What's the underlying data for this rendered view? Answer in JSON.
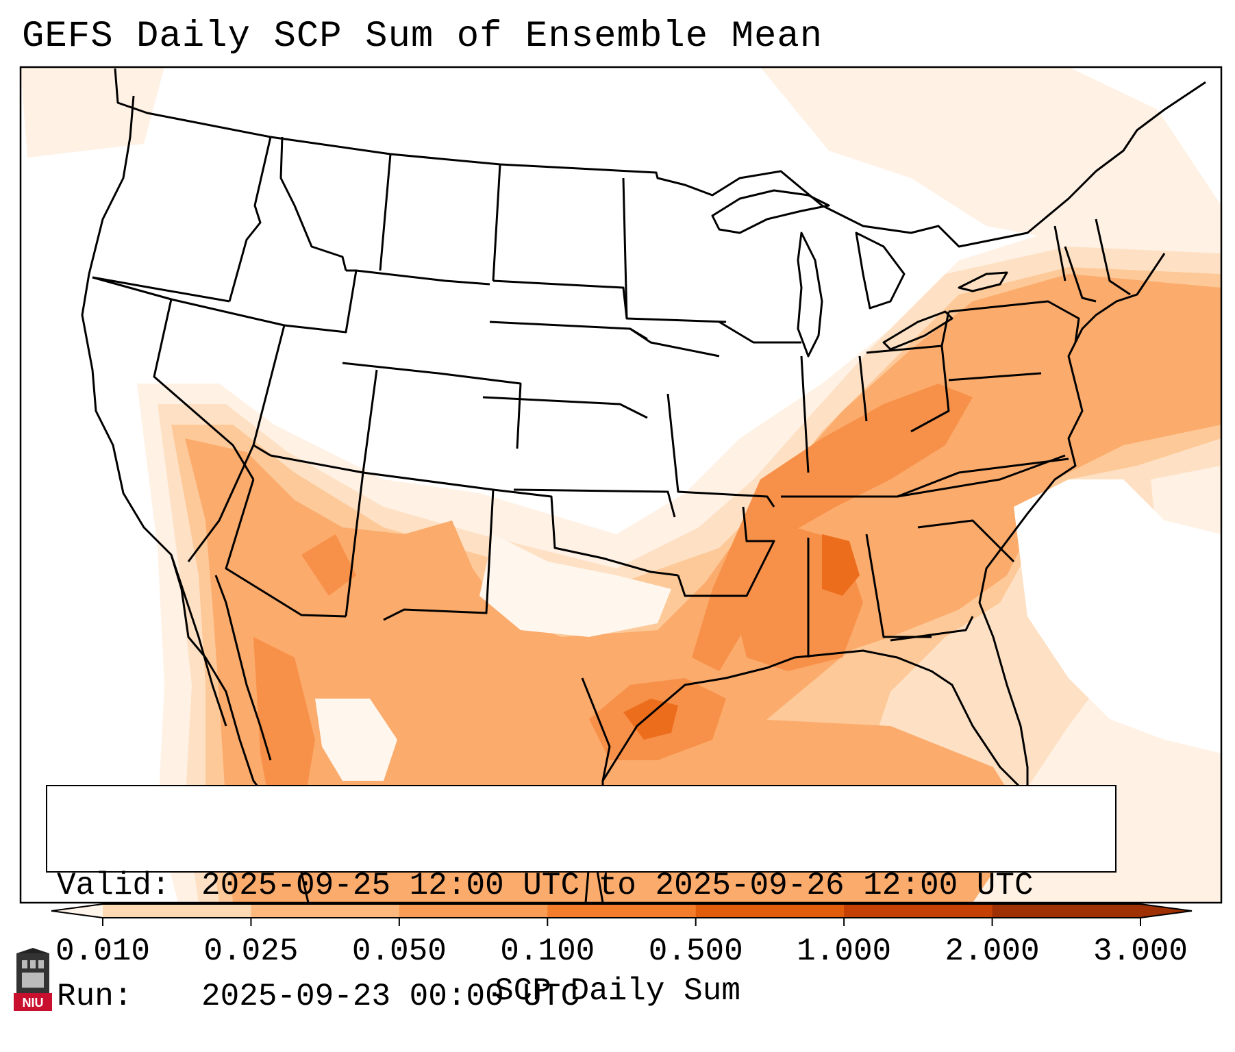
{
  "title": "GEFS Daily SCP Sum of Ensemble Mean",
  "info": {
    "valid_key": "Valid:",
    "valid_value": "2025-09-25 12:00 UTC to 2025-09-26 12:00 UTC",
    "run_key": "Run:",
    "run_value": "2025-09-23 00:00 UTC"
  },
  "colorbar": {
    "label": "SCP Daily Sum",
    "ticks": [
      "0.010",
      "0.025",
      "0.050",
      "0.100",
      "0.500",
      "1.000",
      "2.000",
      "3.000"
    ],
    "colors": [
      "#fff5eb",
      "#fdd9b4",
      "#fdb97d",
      "#f89c56",
      "#f37d2a",
      "#e15c0b",
      "#c44103",
      "#9e3003"
    ]
  },
  "logo": {
    "text": "NIU",
    "color": "#c8102e"
  }
}
